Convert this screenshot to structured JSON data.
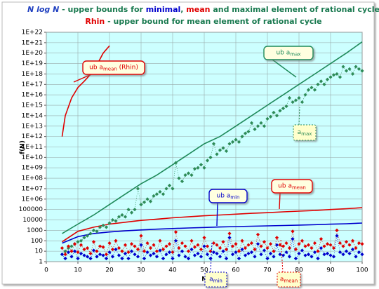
{
  "chart_data": {
    "type": "line",
    "title_lines": [
      [
        {
          "text": "N log N",
          "color": "#2040c0",
          "italic": true
        },
        {
          "text": " - upper bounds for ",
          "color": "#1a7a50"
        },
        {
          "text": "minimal",
          "color": "#0000cc"
        },
        {
          "text": ", ",
          "color": "#1a7a50"
        },
        {
          "text": "mean",
          "color": "#e00000"
        },
        {
          "text": " and maximal element of rational cycle",
          "color": "#1a7a50"
        }
      ],
      [
        {
          "text": "Rhin",
          "color": "#e00000"
        },
        {
          "text": " - upper bound for mean element of rational cycle",
          "color": "#1a7a50"
        }
      ]
    ],
    "xlabel": "N",
    "ylabel": "f(N)",
    "xlim": [
      0,
      100
    ],
    "xticks": [
      0,
      10,
      20,
      30,
      40,
      50,
      60,
      70,
      80,
      90,
      100
    ],
    "ylim": [
      1,
      1e+22
    ],
    "log_y": true,
    "grid": true,
    "yticks": [
      1,
      10,
      100,
      1000,
      10000,
      100000,
      {
        "value": 1000000.0,
        "label": "1E+06"
      },
      {
        "value": 10000000.0,
        "label": "1E+07"
      },
      {
        "value": 100000000.0,
        "label": "1E+08"
      },
      {
        "value": 1000000000.0,
        "label": "1E+09"
      },
      {
        "value": 10000000000.0,
        "label": "1E+10"
      },
      {
        "value": 100000000000.0,
        "label": "1E+11"
      },
      {
        "value": 1000000000000.0,
        "label": "1E+12"
      },
      {
        "value": 10000000000000.0,
        "label": "1E+13"
      },
      {
        "value": 100000000000000.0,
        "label": "1E+14"
      },
      {
        "value": 1000000000000000.0,
        "label": "1E+15"
      },
      {
        "value": 1e+16,
        "label": "1E+16"
      },
      {
        "value": 1e+17,
        "label": "1E+17"
      },
      {
        "value": 1e+18,
        "label": "1E+18"
      },
      {
        "value": 1e+19,
        "label": "1E+19"
      },
      {
        "value": 1e+20,
        "label": "1E+20"
      },
      {
        "value": 1e+21,
        "label": "1E+21"
      },
      {
        "value": 1e+22,
        "label": "1E+22"
      }
    ],
    "x": [
      5,
      6,
      7,
      8,
      9,
      10,
      11,
      12,
      13,
      14,
      15,
      16,
      17,
      18,
      19,
      20,
      21,
      22,
      23,
      24,
      25,
      26,
      27,
      28,
      29,
      30,
      31,
      32,
      33,
      34,
      35,
      36,
      37,
      38,
      39,
      40,
      41,
      42,
      43,
      44,
      45,
      46,
      47,
      48,
      49,
      50,
      51,
      52,
      53,
      54,
      55,
      56,
      57,
      58,
      59,
      60,
      61,
      62,
      63,
      64,
      65,
      66,
      67,
      68,
      69,
      70,
      71,
      72,
      73,
      74,
      75,
      76,
      77,
      78,
      79,
      80,
      81,
      82,
      83,
      84,
      85,
      86,
      87,
      88,
      89,
      90,
      91,
      92,
      93,
      94,
      95,
      96,
      97,
      98,
      99,
      100
    ],
    "series": [
      {
        "style": "line",
        "color": "#e00000",
        "x": [
          5,
          6,
          8,
          10,
          12,
          15,
          18,
          20
        ],
        "values": [
          1000000000000.0,
          100000000000000.0,
          5000000000000000.0,
          5e+16,
          2e+17,
          2e+18,
          1e+20,
          5e+20
        ],
        "label": {
          "text": "ub a",
          "sub": "mean",
          "after": " (Rhin)"
        }
      },
      {
        "style": "line",
        "color": "#1f8a5a",
        "x": [
          5,
          10,
          15,
          20,
          25,
          30,
          35,
          40,
          45,
          50,
          55,
          60,
          65,
          70,
          75,
          80,
          85,
          90,
          95,
          100
        ],
        "values": [
          500.0,
          4000.0,
          30000.0,
          300000.0,
          3000000.0,
          30000000.0,
          200000000.0,
          2000000000.0,
          20000000000.0,
          200000000000.0,
          1000000000000.0,
          10000000000000.0,
          100000000000000.0,
          1000000000000000.0,
          1e+16,
          1e+17,
          1e+18,
          1e+19,
          1e+20,
          1.2e+21
        ],
        "label": {
          "text": "ub a",
          "sub": "max"
        }
      },
      {
        "style": "line",
        "color": "#e00000",
        "x": [
          5,
          10,
          15,
          20,
          25,
          30,
          35,
          40,
          45,
          50,
          55,
          60,
          65,
          70,
          75,
          80,
          85,
          90,
          95,
          100
        ],
        "values": [
          80,
          800,
          2000,
          4000,
          6000,
          9000,
          12000,
          16000,
          20000,
          25000,
          30000,
          36000,
          43000,
          50000,
          60000,
          70000,
          80000,
          100000,
          120000,
          150000
        ],
        "label": {
          "text": "ub a",
          "sub": "mean"
        }
      },
      {
        "style": "line",
        "color": "#0000cc",
        "x": [
          5,
          10,
          15,
          20,
          25,
          30,
          35,
          40,
          45,
          50,
          55,
          60,
          65,
          70,
          75,
          80,
          85,
          90,
          95,
          100
        ],
        "values": [
          60,
          250,
          500,
          700,
          900,
          1100,
          1300,
          1500,
          1700,
          1900,
          2100,
          2300,
          2500,
          2700,
          2900,
          3200,
          3500,
          3900,
          4300,
          5000
        ],
        "label": {
          "text": "ub a",
          "sub": "min"
        }
      },
      {
        "style": "dotted",
        "color": "#2e8b57",
        "values": [
          5,
          10,
          20,
          30,
          50,
          80,
          100,
          200,
          300,
          500,
          1000.0,
          800,
          2000.0,
          3000.0,
          2000.0,
          5000.0,
          10000.0,
          8000.0,
          20000.0,
          30000.0,
          20000.0,
          100000.0,
          50000.0,
          100000.0,
          10000000.0,
          300000.0,
          500000.0,
          1000000.0,
          600000.0,
          2000000.0,
          3000000.0,
          5000000.0,
          3000000.0,
          10000000.0,
          20000000.0,
          10000000.0,
          3000000000.0,
          100000000.0,
          50000000.0,
          200000000.0,
          300000000.0,
          200000000.0,
          800000000.0,
          1000000000.0,
          2000000000.0,
          1000000000.0,
          5000000000.0,
          10000000000.0,
          200000000000.0,
          20000000000.0,
          50000000000.0,
          80000000000.0,
          40000000000.0,
          200000000000.0,
          300000000000.0,
          500000000000.0,
          300000000000.0,
          1000000000000.0,
          2000000000000.0,
          3000000000000.0,
          20000000000000.0,
          5000000000000.0,
          10000000000000.0,
          20000000000000.0,
          10000000000000.0,
          50000000000000.0,
          80000000000000.0,
          200000000000000.0,
          100000000000000.0,
          300000000000000.0,
          500000000000000.0,
          800000000000000.0,
          5000000000000000.0,
          2000000000000000.0,
          3000000000000000.0,
          5000000000000000.0,
          2000000000000000.0,
          1e+16,
          3e+16,
          5e+16,
          3e+16,
          1e+17,
          2e+17,
          1e+17,
          3e+17,
          5e+17,
          8e+17,
          1e+18,
          5e+17,
          5e+18,
          2e+18,
          3e+18,
          1e+18,
          5e+18,
          3e+18,
          2e+18
        ],
        "label": {
          "text": "a",
          "sub": "max"
        }
      },
      {
        "style": "dotted",
        "color": "#e00000",
        "values": [
          20,
          5,
          30,
          10,
          50,
          8,
          40,
          15,
          20,
          6,
          80,
          10,
          30,
          25,
          5,
          60,
          15,
          100,
          20,
          10,
          40,
          8,
          50,
          30,
          15,
          300,
          10,
          60,
          20,
          40,
          10,
          100,
          15,
          30,
          50,
          8,
          700,
          20,
          60,
          30,
          10,
          100,
          25,
          40,
          15,
          200,
          30,
          10,
          60,
          40,
          20,
          80,
          15,
          500,
          30,
          50,
          10,
          100,
          20,
          40,
          60,
          15,
          400,
          30,
          80,
          20,
          50,
          10,
          200,
          40,
          30,
          60,
          20,
          800,
          15,
          50,
          100,
          30,
          40,
          20,
          60,
          10,
          150,
          30,
          50,
          40,
          20,
          1000,
          60,
          30,
          80,
          40,
          100,
          20,
          60,
          50
        ],
        "label": {
          "text": "a",
          "sub": "mean"
        }
      },
      {
        "style": "dotted",
        "color": "#0000cc",
        "values": [
          5,
          2,
          8,
          3,
          10,
          2,
          6,
          4,
          3,
          2,
          12,
          3,
          5,
          4,
          2,
          8,
          3,
          15,
          4,
          2,
          6,
          2,
          10,
          5,
          3,
          40,
          2,
          8,
          4,
          6,
          3,
          12,
          2,
          5,
          8,
          2,
          100,
          4,
          10,
          3,
          2,
          15,
          4,
          6,
          3,
          30,
          5,
          2,
          8,
          6,
          3,
          10,
          2,
          200,
          5,
          8,
          2,
          15,
          4,
          6,
          8,
          3,
          50,
          5,
          12,
          2,
          6,
          3,
          40,
          5,
          4,
          8,
          3,
          150,
          2,
          6,
          12,
          4,
          5,
          3,
          8,
          2,
          20,
          5,
          6,
          4,
          3,
          300,
          8,
          5,
          10,
          6,
          15,
          3,
          8,
          5
        ],
        "label": {
          "text": "a",
          "sub": "min"
        }
      }
    ]
  }
}
